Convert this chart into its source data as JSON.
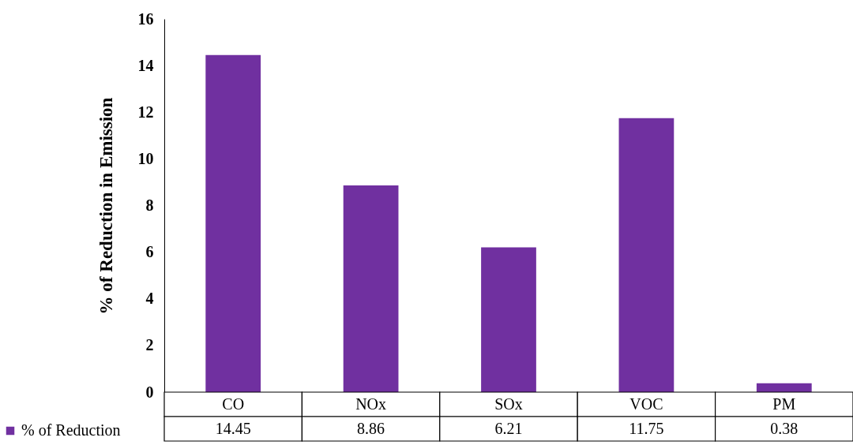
{
  "chart_data": {
    "type": "bar",
    "ylabel": "% of Reduction in Emission",
    "categories": [
      "CO",
      "NOx",
      "SOx",
      "VOC",
      "PM"
    ],
    "series": [
      {
        "name": "% of Reduction",
        "color": "#7030a0",
        "values": [
          14.45,
          8.86,
          6.21,
          11.75,
          0.38
        ]
      }
    ],
    "ylim": [
      0,
      16
    ],
    "yticks": [
      0,
      2,
      4,
      6,
      8,
      10,
      12,
      14,
      16
    ],
    "data_labels": true,
    "legend": "bottom left"
  }
}
